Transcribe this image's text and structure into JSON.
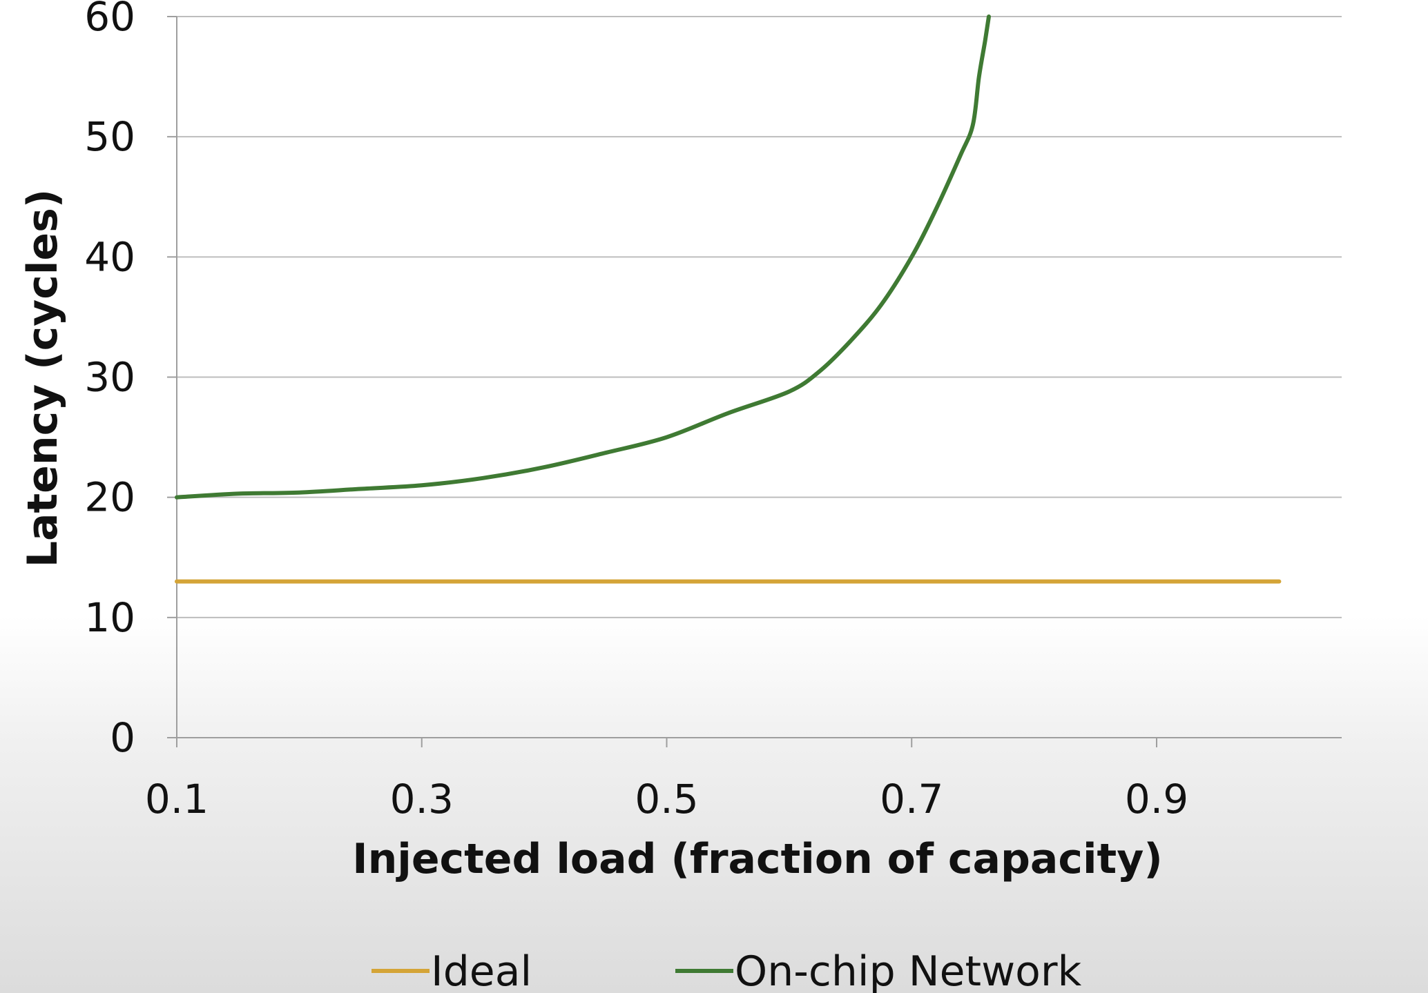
{
  "chart_data": {
    "type": "line",
    "xlabel": "Injected load (fraction of capacity)",
    "ylabel": "Latency (cycles)",
    "xlim": [
      0.1,
      1.05
    ],
    "ylim": [
      0,
      60
    ],
    "x_ticks": [
      "0.1",
      "0.3",
      "0.5",
      "0.7",
      "0.9"
    ],
    "x_tick_values": [
      0.1,
      0.3,
      0.5,
      0.7,
      0.9
    ],
    "y_ticks": [
      "0",
      "10",
      "20",
      "30",
      "40",
      "50",
      "60"
    ],
    "y_tick_values": [
      0,
      10,
      20,
      30,
      40,
      50,
      60
    ],
    "grid": "horizontal",
    "legend_position": "bottom",
    "series": [
      {
        "name": "Ideal",
        "color": "#d4a437",
        "points": [
          [
            0.1,
            13
          ],
          [
            1.0,
            13
          ]
        ]
      },
      {
        "name": "On-chip Network",
        "color": "#3f7a33",
        "points": [
          [
            0.1,
            20.0
          ],
          [
            0.15,
            20.3
          ],
          [
            0.2,
            20.4
          ],
          [
            0.25,
            20.7
          ],
          [
            0.3,
            21.0
          ],
          [
            0.35,
            21.6
          ],
          [
            0.4,
            22.5
          ],
          [
            0.45,
            23.7
          ],
          [
            0.5,
            25.0
          ],
          [
            0.55,
            27.0
          ],
          [
            0.6,
            28.8
          ],
          [
            0.625,
            30.5
          ],
          [
            0.65,
            33.0
          ],
          [
            0.675,
            36.0
          ],
          [
            0.7,
            40.0
          ],
          [
            0.72,
            44.0
          ],
          [
            0.74,
            48.5
          ],
          [
            0.75,
            51.0
          ],
          [
            0.755,
            55.0
          ],
          [
            0.76,
            58.0
          ],
          [
            0.763,
            60.0
          ]
        ]
      }
    ]
  }
}
